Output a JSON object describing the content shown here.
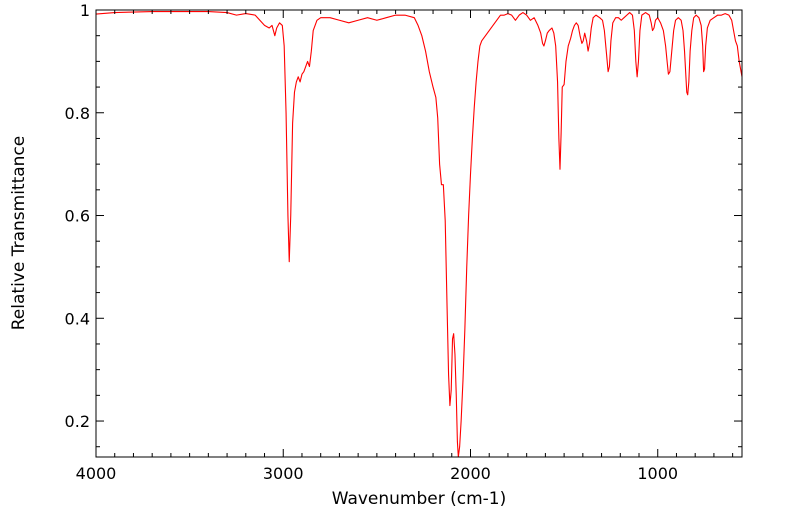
{
  "chart_data": {
    "type": "line",
    "title": "",
    "xlabel": "Wavenumber (cm-1)",
    "ylabel": "Relative Transmittance",
    "xlim": [
      4000,
      550
    ],
    "ylim": [
      0.13,
      1.0
    ],
    "x_reversed": true,
    "grid": false,
    "legend": "none",
    "x_ticks": [
      {
        "value": 4000,
        "label": "4000"
      },
      {
        "value": 3000,
        "label": "3000"
      },
      {
        "value": 2000,
        "label": "2000"
      },
      {
        "value": 1000,
        "label": "1000"
      }
    ],
    "y_ticks": [
      {
        "value": 0.2,
        "label": "0.2"
      },
      {
        "value": 0.4,
        "label": "0.4"
      },
      {
        "value": 0.6,
        "label": "0.6"
      },
      {
        "value": 0.8,
        "label": "0.8"
      },
      {
        "value": 1.0,
        "label": "1"
      }
    ],
    "series": [
      {
        "color": "#ff0000",
        "points": [
          [
            4000,
            0.992
          ],
          [
            3900,
            0.995
          ],
          [
            3800,
            0.996
          ],
          [
            3700,
            0.997
          ],
          [
            3600,
            0.997
          ],
          [
            3500,
            0.997
          ],
          [
            3400,
            0.997
          ],
          [
            3300,
            0.995
          ],
          [
            3250,
            0.99
          ],
          [
            3200,
            0.993
          ],
          [
            3150,
            0.99
          ],
          [
            3100,
            0.97
          ],
          [
            3075,
            0.965
          ],
          [
            3060,
            0.97
          ],
          [
            3045,
            0.95
          ],
          [
            3035,
            0.965
          ],
          [
            3020,
            0.975
          ],
          [
            3005,
            0.97
          ],
          [
            2995,
            0.93
          ],
          [
            2985,
            0.8
          ],
          [
            2975,
            0.6
          ],
          [
            2968,
            0.51
          ],
          [
            2960,
            0.6
          ],
          [
            2950,
            0.78
          ],
          [
            2940,
            0.84
          ],
          [
            2930,
            0.86
          ],
          [
            2920,
            0.87
          ],
          [
            2910,
            0.86
          ],
          [
            2900,
            0.875
          ],
          [
            2890,
            0.88
          ],
          [
            2880,
            0.89
          ],
          [
            2870,
            0.9
          ],
          [
            2860,
            0.89
          ],
          [
            2850,
            0.92
          ],
          [
            2840,
            0.96
          ],
          [
            2820,
            0.98
          ],
          [
            2800,
            0.985
          ],
          [
            2750,
            0.985
          ],
          [
            2700,
            0.98
          ],
          [
            2650,
            0.975
          ],
          [
            2600,
            0.98
          ],
          [
            2550,
            0.985
          ],
          [
            2500,
            0.98
          ],
          [
            2450,
            0.985
          ],
          [
            2400,
            0.99
          ],
          [
            2350,
            0.99
          ],
          [
            2300,
            0.985
          ],
          [
            2280,
            0.97
          ],
          [
            2260,
            0.95
          ],
          [
            2240,
            0.92
          ],
          [
            2220,
            0.88
          ],
          [
            2200,
            0.85
          ],
          [
            2185,
            0.83
          ],
          [
            2175,
            0.79
          ],
          [
            2165,
            0.7
          ],
          [
            2155,
            0.66
          ],
          [
            2145,
            0.66
          ],
          [
            2135,
            0.59
          ],
          [
            2125,
            0.42
          ],
          [
            2117,
            0.29
          ],
          [
            2110,
            0.23
          ],
          [
            2103,
            0.26
          ],
          [
            2096,
            0.36
          ],
          [
            2090,
            0.37
          ],
          [
            2083,
            0.33
          ],
          [
            2076,
            0.25
          ],
          [
            2070,
            0.16
          ],
          [
            2065,
            0.13
          ],
          [
            2058,
            0.15
          ],
          [
            2050,
            0.2
          ],
          [
            2040,
            0.28
          ],
          [
            2030,
            0.38
          ],
          [
            2020,
            0.5
          ],
          [
            2010,
            0.6
          ],
          [
            2000,
            0.68
          ],
          [
            1990,
            0.75
          ],
          [
            1980,
            0.81
          ],
          [
            1970,
            0.86
          ],
          [
            1960,
            0.9
          ],
          [
            1950,
            0.93
          ],
          [
            1940,
            0.94
          ],
          [
            1920,
            0.95
          ],
          [
            1900,
            0.96
          ],
          [
            1880,
            0.97
          ],
          [
            1860,
            0.98
          ],
          [
            1840,
            0.99
          ],
          [
            1820,
            0.99
          ],
          [
            1800,
            0.993
          ],
          [
            1780,
            0.99
          ],
          [
            1760,
            0.98
          ],
          [
            1740,
            0.99
          ],
          [
            1720,
            0.995
          ],
          [
            1700,
            0.99
          ],
          [
            1680,
            0.98
          ],
          [
            1660,
            0.985
          ],
          [
            1640,
            0.97
          ],
          [
            1625,
            0.955
          ],
          [
            1615,
            0.935
          ],
          [
            1608,
            0.93
          ],
          [
            1600,
            0.94
          ],
          [
            1590,
            0.955
          ],
          [
            1580,
            0.96
          ],
          [
            1565,
            0.965
          ],
          [
            1555,
            0.955
          ],
          [
            1545,
            0.93
          ],
          [
            1535,
            0.86
          ],
          [
            1528,
            0.75
          ],
          [
            1522,
            0.69
          ],
          [
            1516,
            0.76
          ],
          [
            1510,
            0.85
          ],
          [
            1500,
            0.855
          ],
          [
            1490,
            0.9
          ],
          [
            1478,
            0.93
          ],
          [
            1465,
            0.945
          ],
          [
            1455,
            0.96
          ],
          [
            1445,
            0.97
          ],
          [
            1435,
            0.975
          ],
          [
            1425,
            0.97
          ],
          [
            1415,
            0.95
          ],
          [
            1405,
            0.935
          ],
          [
            1398,
            0.94
          ],
          [
            1390,
            0.955
          ],
          [
            1380,
            0.94
          ],
          [
            1372,
            0.92
          ],
          [
            1364,
            0.935
          ],
          [
            1355,
            0.965
          ],
          [
            1345,
            0.985
          ],
          [
            1330,
            0.99
          ],
          [
            1310,
            0.985
          ],
          [
            1295,
            0.98
          ],
          [
            1285,
            0.96
          ],
          [
            1275,
            0.92
          ],
          [
            1265,
            0.88
          ],
          [
            1258,
            0.89
          ],
          [
            1250,
            0.94
          ],
          [
            1240,
            0.975
          ],
          [
            1225,
            0.985
          ],
          [
            1210,
            0.985
          ],
          [
            1195,
            0.98
          ],
          [
            1180,
            0.985
          ],
          [
            1165,
            0.99
          ],
          [
            1150,
            0.995
          ],
          [
            1135,
            0.99
          ],
          [
            1125,
            0.96
          ],
          [
            1117,
            0.9
          ],
          [
            1110,
            0.87
          ],
          [
            1103,
            0.9
          ],
          [
            1095,
            0.96
          ],
          [
            1085,
            0.99
          ],
          [
            1065,
            0.995
          ],
          [
            1045,
            0.99
          ],
          [
            1035,
            0.975
          ],
          [
            1028,
            0.96
          ],
          [
            1020,
            0.965
          ],
          [
            1012,
            0.98
          ],
          [
            1000,
            0.985
          ],
          [
            985,
            0.975
          ],
          [
            970,
            0.96
          ],
          [
            958,
            0.93
          ],
          [
            950,
            0.9
          ],
          [
            943,
            0.875
          ],
          [
            935,
            0.88
          ],
          [
            925,
            0.92
          ],
          [
            915,
            0.96
          ],
          [
            905,
            0.98
          ],
          [
            890,
            0.985
          ],
          [
            875,
            0.98
          ],
          [
            865,
            0.96
          ],
          [
            857,
            0.92
          ],
          [
            851,
            0.88
          ],
          [
            845,
            0.84
          ],
          [
            840,
            0.835
          ],
          [
            834,
            0.86
          ],
          [
            827,
            0.92
          ],
          [
            818,
            0.96
          ],
          [
            808,
            0.985
          ],
          [
            795,
            0.99
          ],
          [
            780,
            0.985
          ],
          [
            768,
            0.97
          ],
          [
            760,
            0.93
          ],
          [
            755,
            0.88
          ],
          [
            750,
            0.885
          ],
          [
            744,
            0.93
          ],
          [
            735,
            0.965
          ],
          [
            720,
            0.98
          ],
          [
            700,
            0.985
          ],
          [
            680,
            0.99
          ],
          [
            660,
            0.99
          ],
          [
            640,
            0.993
          ],
          [
            620,
            0.99
          ],
          [
            605,
            0.98
          ],
          [
            595,
            0.96
          ],
          [
            585,
            0.94
          ],
          [
            575,
            0.93
          ],
          [
            565,
            0.9
          ],
          [
            555,
            0.88
          ],
          [
            550,
            0.87
          ]
        ]
      }
    ]
  }
}
